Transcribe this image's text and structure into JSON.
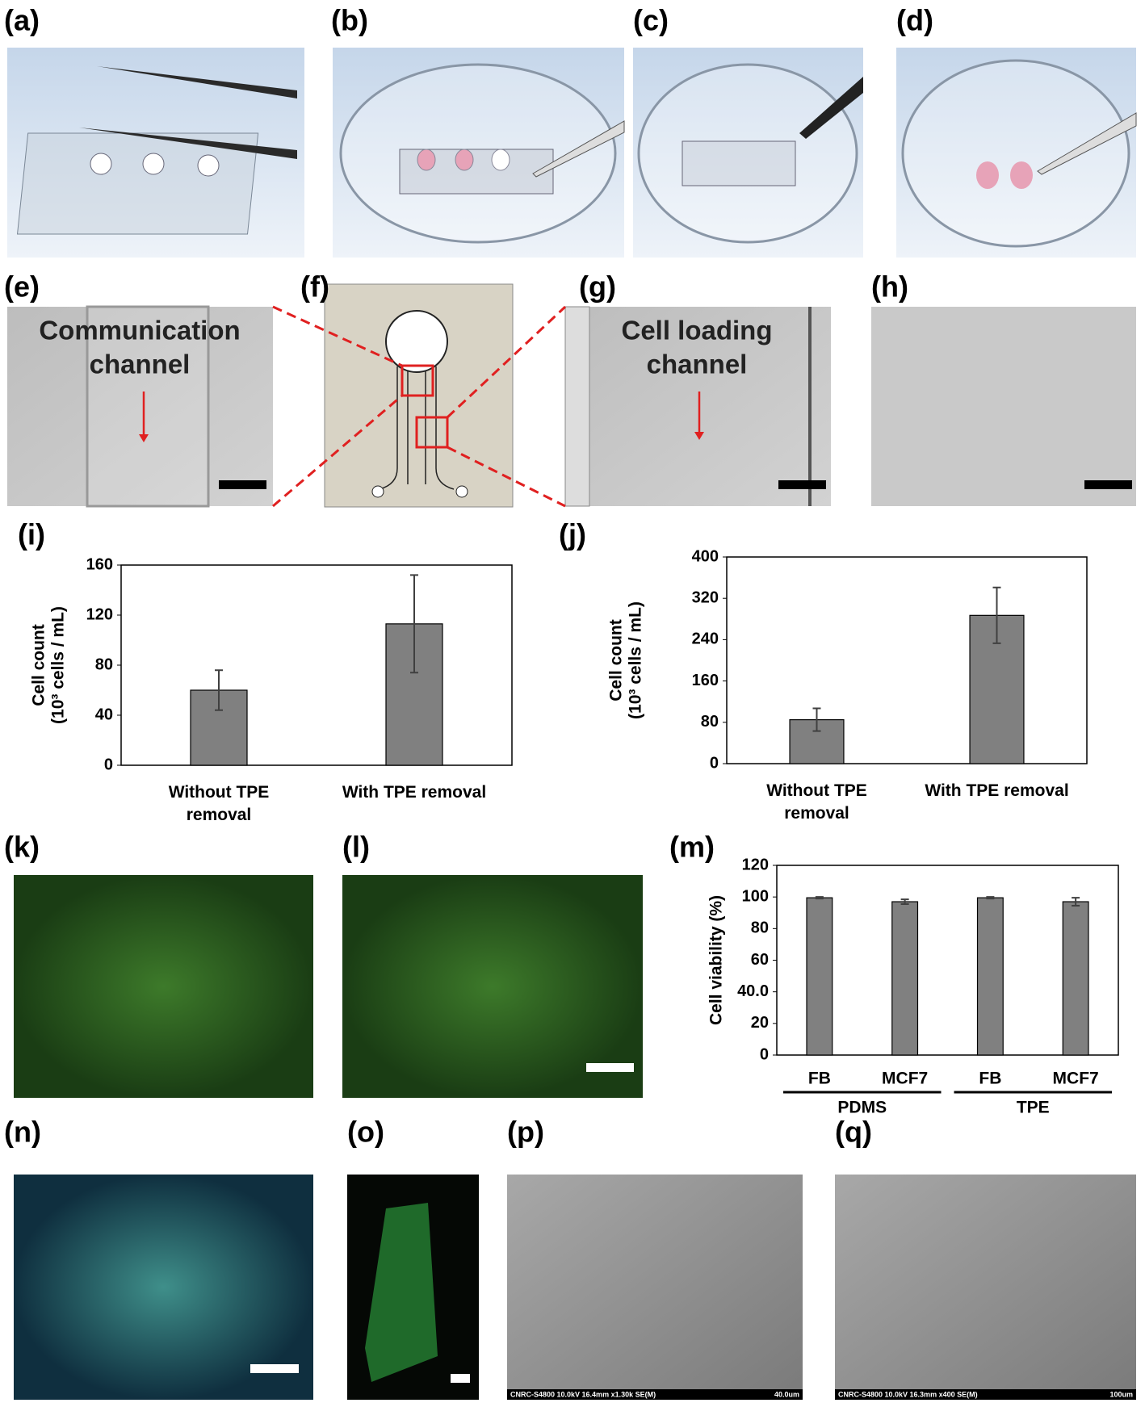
{
  "panel_labels": [
    "(a)",
    "(b)",
    "(c)",
    "(d)",
    "(e)",
    "(f)",
    "(g)",
    "(h)",
    "(i)",
    "(j)",
    "(k)",
    "(l)",
    "(m)",
    "(n)",
    "(o)",
    "(p)",
    "(q)"
  ],
  "annotations": {
    "e": [
      "Communication",
      "channel"
    ],
    "g": [
      "Cell loading",
      "channel"
    ]
  },
  "sem_labels": {
    "p": {
      "info": "CNRC-S4800 10.0kV 16.4mm x1.30k SE(M)",
      "scale": "40.0um"
    },
    "q": {
      "info": "CNRC-S4800 10.0kV 16.3mm x400 SE(M)",
      "scale": "100um"
    }
  },
  "chart_data": [
    {
      "type": "bar",
      "y_label": [
        "Cell count",
        "(10³ cells / mL)"
      ],
      "categories": [
        "Without TPE removal",
        "With TPE removal"
      ],
      "values": [
        60,
        113
      ],
      "errors": [
        16,
        39
      ],
      "color": "#808080",
      "ylim": [
        0,
        160
      ],
      "yticks": [
        0,
        40,
        80,
        120,
        160
      ]
    },
    {
      "type": "bar",
      "y_label": [
        "Cell count",
        "(10³ cells / mL)"
      ],
      "categories": [
        "Without TPE removal",
        "With TPE removal"
      ],
      "values": [
        85,
        287
      ],
      "errors": [
        22,
        54
      ],
      "color": "#808080",
      "ylim": [
        0,
        400
      ],
      "yticks": [
        0,
        80,
        160,
        240,
        320,
        400
      ]
    },
    {
      "type": "bar",
      "y_label": [
        "Cell viability (%)"
      ],
      "categories": [
        "FB",
        "MCF7",
        "FB",
        "MCF7"
      ],
      "groups": [
        "PDMS",
        "TPE"
      ],
      "values": [
        99.5,
        97,
        99.5,
        97
      ],
      "errors": [
        0.5,
        1.5,
        0.5,
        2.5
      ],
      "color": "#808080",
      "ylim": [
        0,
        120
      ],
      "yticks": [
        0,
        20,
        {
          "value": 40,
          "label": "40.0"
        },
        60,
        80,
        100,
        120
      ]
    }
  ]
}
